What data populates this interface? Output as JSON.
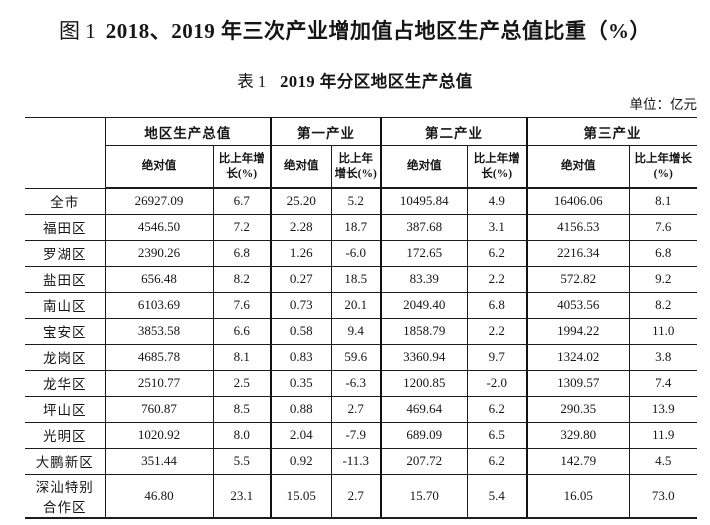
{
  "figure_caption": {
    "label": "图 1",
    "title": "2018、2019 年三次产业增加值占地区生产总值比重（%）"
  },
  "table_caption": {
    "label": "表 1",
    "title": "2019 年分区地区生产总值"
  },
  "unit_note": "单位：亿元",
  "table": {
    "groups": [
      "地区生产总值",
      "第一产业",
      "第二产业",
      "第三产业"
    ],
    "sub_headers": {
      "absolute": "绝对值",
      "growth": "比上年增长(%)"
    },
    "rows": [
      {
        "region": "全市",
        "values": [
          "26927.09",
          "6.7",
          "25.20",
          "5.2",
          "10495.84",
          "4.9",
          "16406.06",
          "8.1"
        ]
      },
      {
        "region": "福田区",
        "values": [
          "4546.50",
          "7.2",
          "2.28",
          "18.7",
          "387.68",
          "3.1",
          "4156.53",
          "7.6"
        ]
      },
      {
        "region": "罗湖区",
        "values": [
          "2390.26",
          "6.8",
          "1.26",
          "-6.0",
          "172.65",
          "6.2",
          "2216.34",
          "6.8"
        ]
      },
      {
        "region": "盐田区",
        "values": [
          "656.48",
          "8.2",
          "0.27",
          "18.5",
          "83.39",
          "2.2",
          "572.82",
          "9.2"
        ]
      },
      {
        "region": "南山区",
        "values": [
          "6103.69",
          "7.6",
          "0.73",
          "20.1",
          "2049.40",
          "6.8",
          "4053.56",
          "8.2"
        ]
      },
      {
        "region": "宝安区",
        "values": [
          "3853.58",
          "6.6",
          "0.58",
          "9.4",
          "1858.79",
          "2.2",
          "1994.22",
          "11.0"
        ]
      },
      {
        "region": "龙岗区",
        "values": [
          "4685.78",
          "8.1",
          "0.83",
          "59.6",
          "3360.94",
          "9.7",
          "1324.02",
          "3.8"
        ]
      },
      {
        "region": "龙华区",
        "values": [
          "2510.77",
          "2.5",
          "0.35",
          "-6.3",
          "1200.85",
          "-2.0",
          "1309.57",
          "7.4"
        ]
      },
      {
        "region": "坪山区",
        "values": [
          "760.87",
          "8.5",
          "0.88",
          "2.7",
          "469.64",
          "6.2",
          "290.35",
          "13.9"
        ]
      },
      {
        "region": "光明区",
        "values": [
          "1020.92",
          "8.0",
          "2.04",
          "-7.9",
          "689.09",
          "6.5",
          "329.80",
          "11.9"
        ]
      },
      {
        "region": "大鹏新区",
        "values": [
          "351.44",
          "5.5",
          "0.92",
          "-11.3",
          "207.72",
          "6.2",
          "142.79",
          "4.5"
        ]
      },
      {
        "region": "深汕特别合作区",
        "values": [
          "46.80",
          "23.1",
          "15.05",
          "2.7",
          "15.70",
          "5.4",
          "16.05",
          "73.0"
        ]
      }
    ]
  }
}
